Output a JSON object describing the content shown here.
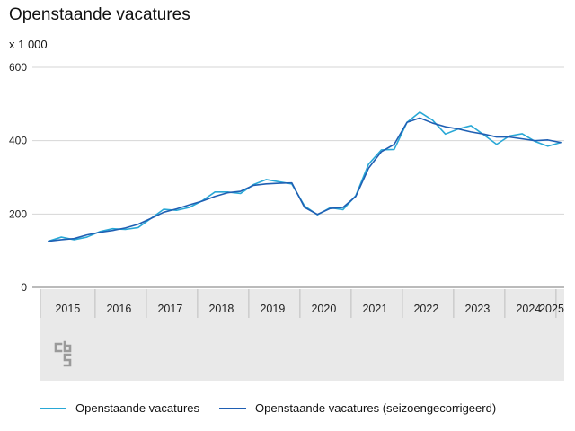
{
  "header": {
    "title": "Openstaande vacatures",
    "unit": "x 1 000"
  },
  "colors": {
    "series_raw": "#29a8d6",
    "series_adjusted": "#1f5fb3",
    "band": "#e9e9e9"
  },
  "logo_icon": "cbs-logo-icon",
  "chart_data": {
    "type": "line",
    "title": "Openstaande vacatures",
    "ylabel": "x 1 000",
    "ylim": [
      0,
      600
    ],
    "yticks": [
      0,
      200,
      400,
      600
    ],
    "grid": true,
    "legend": "bottom",
    "years": [
      "2015",
      "2016",
      "2017",
      "2018",
      "2019",
      "2020",
      "2021",
      "2022",
      "2023",
      "2024",
      "2025"
    ],
    "x_start_year": 2015,
    "periods_per_year": 4,
    "series": [
      {
        "name": "Openstaande vacatures",
        "values": [
          126,
          137,
          130,
          137,
          152,
          160,
          158,
          163,
          188,
          213,
          210,
          218,
          236,
          260,
          260,
          256,
          280,
          294,
          288,
          282,
          222,
          198,
          217,
          212,
          250,
          336,
          375,
          376,
          450,
          478,
          456,
          418,
          432,
          441,
          416,
          390,
          413,
          419,
          398,
          385,
          395
        ]
      },
      {
        "name": "Openstaande vacatures (seizoengecorrigeerd)",
        "values": [
          126,
          130,
          133,
          143,
          150,
          155,
          162,
          172,
          188,
          205,
          214,
          225,
          235,
          248,
          258,
          262,
          278,
          282,
          284,
          285,
          218,
          199,
          215,
          218,
          248,
          325,
          370,
          390,
          450,
          462,
          448,
          438,
          432,
          424,
          418,
          410,
          410,
          405,
          400,
          402,
          395
        ]
      }
    ]
  }
}
